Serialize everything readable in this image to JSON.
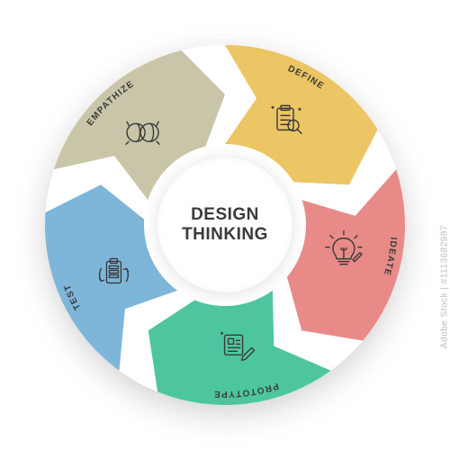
{
  "center": {
    "line1": "DESIGN",
    "line2": "THINKING"
  },
  "watermark": "Adobe Stock | #1113682987",
  "diagram": {
    "type": "circular-arrow-cycle",
    "outer_radius": 200,
    "inner_radius": 90,
    "mid_radius_label": 185,
    "mid_radius_icon": 135,
    "arrow_head_depth_deg": 14,
    "background_color": "#ffffff",
    "center_circle_color": "#ffffff",
    "text_color": "#3a3a3a",
    "label_fontsize": 10,
    "center_fontsize": 19,
    "segments": [
      {
        "key": "empathize",
        "label": "EMPATHIZE",
        "color": "#c9c5a8",
        "start_deg": 198,
        "end_deg": 270,
        "icon": "empathize"
      },
      {
        "key": "define",
        "label": "DEFINE",
        "color": "#ecc564",
        "start_deg": 270,
        "end_deg": 342,
        "icon": "define"
      },
      {
        "key": "ideate",
        "label": "IDEATE",
        "color": "#e88b88",
        "start_deg": 342,
        "end_deg": 54,
        "icon": "ideate"
      },
      {
        "key": "prototype",
        "label": "PROTOTYPE",
        "color": "#4dc6a0",
        "start_deg": 54,
        "end_deg": 126,
        "icon": "prototype"
      },
      {
        "key": "test",
        "label": "TEST",
        "color": "#7eb6d9",
        "start_deg": 126,
        "end_deg": 198,
        "icon": "test"
      }
    ]
  }
}
